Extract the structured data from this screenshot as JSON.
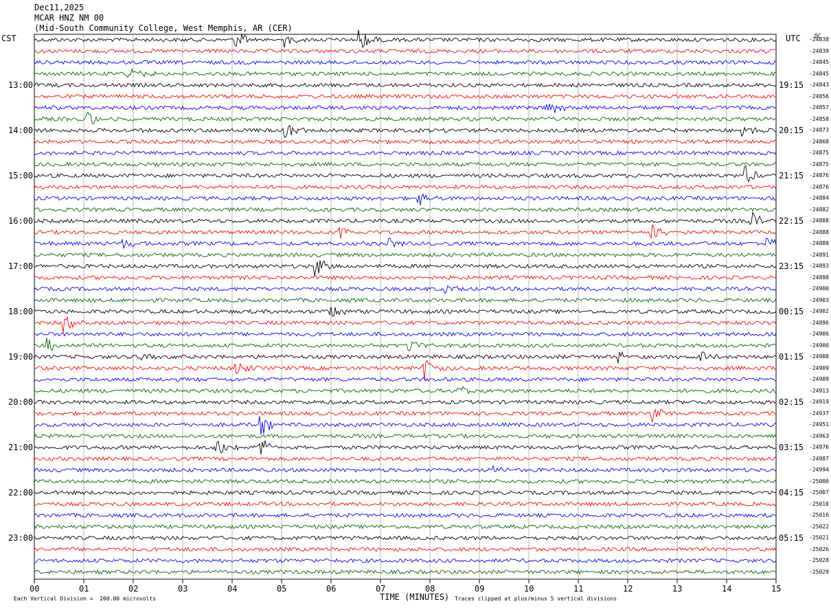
{
  "header": {
    "date": "Dec11,2025",
    "station": "MCAR HNZ NM 00",
    "location": "(Mid-South Community College, West Memphis, AR (CER)"
  },
  "axis": {
    "left_label": "CST",
    "right_label": "UTC",
    "dc_label": "DC",
    "xlabel": "TIME (MINUTES)",
    "x_ticks": [
      "00",
      "01",
      "02",
      "03",
      "04",
      "05",
      "06",
      "07",
      "08",
      "09",
      "10",
      "11",
      "12",
      "13",
      "14",
      "15"
    ],
    "cst_hours": [
      "13:00",
      "14:00",
      "15:00",
      "16:00",
      "17:00",
      "18:00",
      "19:00",
      "20:00",
      "21:00",
      "22:00",
      "23:00"
    ],
    "utc_hours": [
      "19:15",
      "20:15",
      "21:15",
      "22:15",
      "23:15",
      "00:15",
      "01:15",
      "02:15",
      "03:15",
      "04:15",
      "05:15"
    ]
  },
  "footer": {
    "scale_note": "Each Vertical Division =  200.00 microvolts",
    "clip_note": "Traces clipped at plus/minus 5 vertical divisions"
  },
  "colors": {
    "trace_cycle": [
      "#000000",
      "#ff0000",
      "#0000ff",
      "#006600"
    ],
    "grid": "#999999"
  },
  "chart_data": {
    "type": "line",
    "title": "",
    "xlabel": "TIME (MINUTES)",
    "ylabel": "",
    "xlim": [
      0,
      15
    ],
    "minutes_per_trace": 15,
    "traces_per_hour": 4,
    "trace_count": 48,
    "grid": "vertical lines at each minute",
    "dc_offsets": [
      -24838,
      -24839,
      -24845,
      -24845,
      -24843,
      -24856,
      -24857,
      -24858,
      -24873,
      -24868,
      -24875,
      -24875,
      -24876,
      -24876,
      -24884,
      -24882,
      -24888,
      -24888,
      -24888,
      -24891,
      -24893,
      -24898,
      -24900,
      -24903,
      -24902,
      -24896,
      -24906,
      -24900,
      -24908,
      -24909,
      -24909,
      -24913,
      -24919,
      -24937,
      -24951,
      -24963,
      -24976,
      -24987,
      -24994,
      -25000,
      -25007,
      -25010,
      -25016,
      -25022,
      -25021,
      -25026,
      -25028,
      -25029
    ],
    "events": [
      {
        "trace": 0,
        "minute": 6.6,
        "amp": 5
      },
      {
        "trace": 0,
        "minute": 4.1,
        "amp": 4
      },
      {
        "trace": 0,
        "minute": 5.1,
        "amp": 3
      },
      {
        "trace": 3,
        "minute": 1.9,
        "amp": 4
      },
      {
        "trace": 6,
        "minute": 10.4,
        "amp": 4
      },
      {
        "trace": 7,
        "minute": 1.1,
        "amp": 3
      },
      {
        "trace": 8,
        "minute": 5.1,
        "amp": 4
      },
      {
        "trace": 8,
        "minute": 14.3,
        "amp": 3
      },
      {
        "trace": 12,
        "minute": 14.4,
        "amp": 4
      },
      {
        "trace": 14,
        "minute": 7.8,
        "amp": 3
      },
      {
        "trace": 16,
        "minute": 14.5,
        "amp": 4
      },
      {
        "trace": 17,
        "minute": 6.2,
        "amp": 4
      },
      {
        "trace": 17,
        "minute": 12.5,
        "amp": 4
      },
      {
        "trace": 18,
        "minute": 1.8,
        "amp": 3
      },
      {
        "trace": 18,
        "minute": 7.2,
        "amp": 3
      },
      {
        "trace": 18,
        "minute": 14.8,
        "amp": 3
      },
      {
        "trace": 20,
        "minute": 5.7,
        "amp": 5
      },
      {
        "trace": 22,
        "minute": 8.3,
        "amp": 3
      },
      {
        "trace": 24,
        "minute": 6.0,
        "amp": 3
      },
      {
        "trace": 25,
        "minute": 0.6,
        "amp": 5
      },
      {
        "trace": 27,
        "minute": 7.6,
        "amp": 3
      },
      {
        "trace": 27,
        "minute": 0.3,
        "amp": 3
      },
      {
        "trace": 28,
        "minute": 2.2,
        "amp": 3
      },
      {
        "trace": 28,
        "minute": 11.8,
        "amp": 3
      },
      {
        "trace": 28,
        "minute": 13.5,
        "amp": 3
      },
      {
        "trace": 29,
        "minute": 7.9,
        "amp": 5
      },
      {
        "trace": 29,
        "minute": 4.1,
        "amp": 3
      },
      {
        "trace": 31,
        "minute": 8.6,
        "amp": 3
      },
      {
        "trace": 33,
        "minute": 12.5,
        "amp": 5
      },
      {
        "trace": 34,
        "minute": 4.6,
        "amp": 4
      },
      {
        "trace": 36,
        "minute": 3.7,
        "amp": 5
      },
      {
        "trace": 36,
        "minute": 4.6,
        "amp": 4
      },
      {
        "trace": 38,
        "minute": 9.3,
        "amp": 2
      }
    ]
  }
}
